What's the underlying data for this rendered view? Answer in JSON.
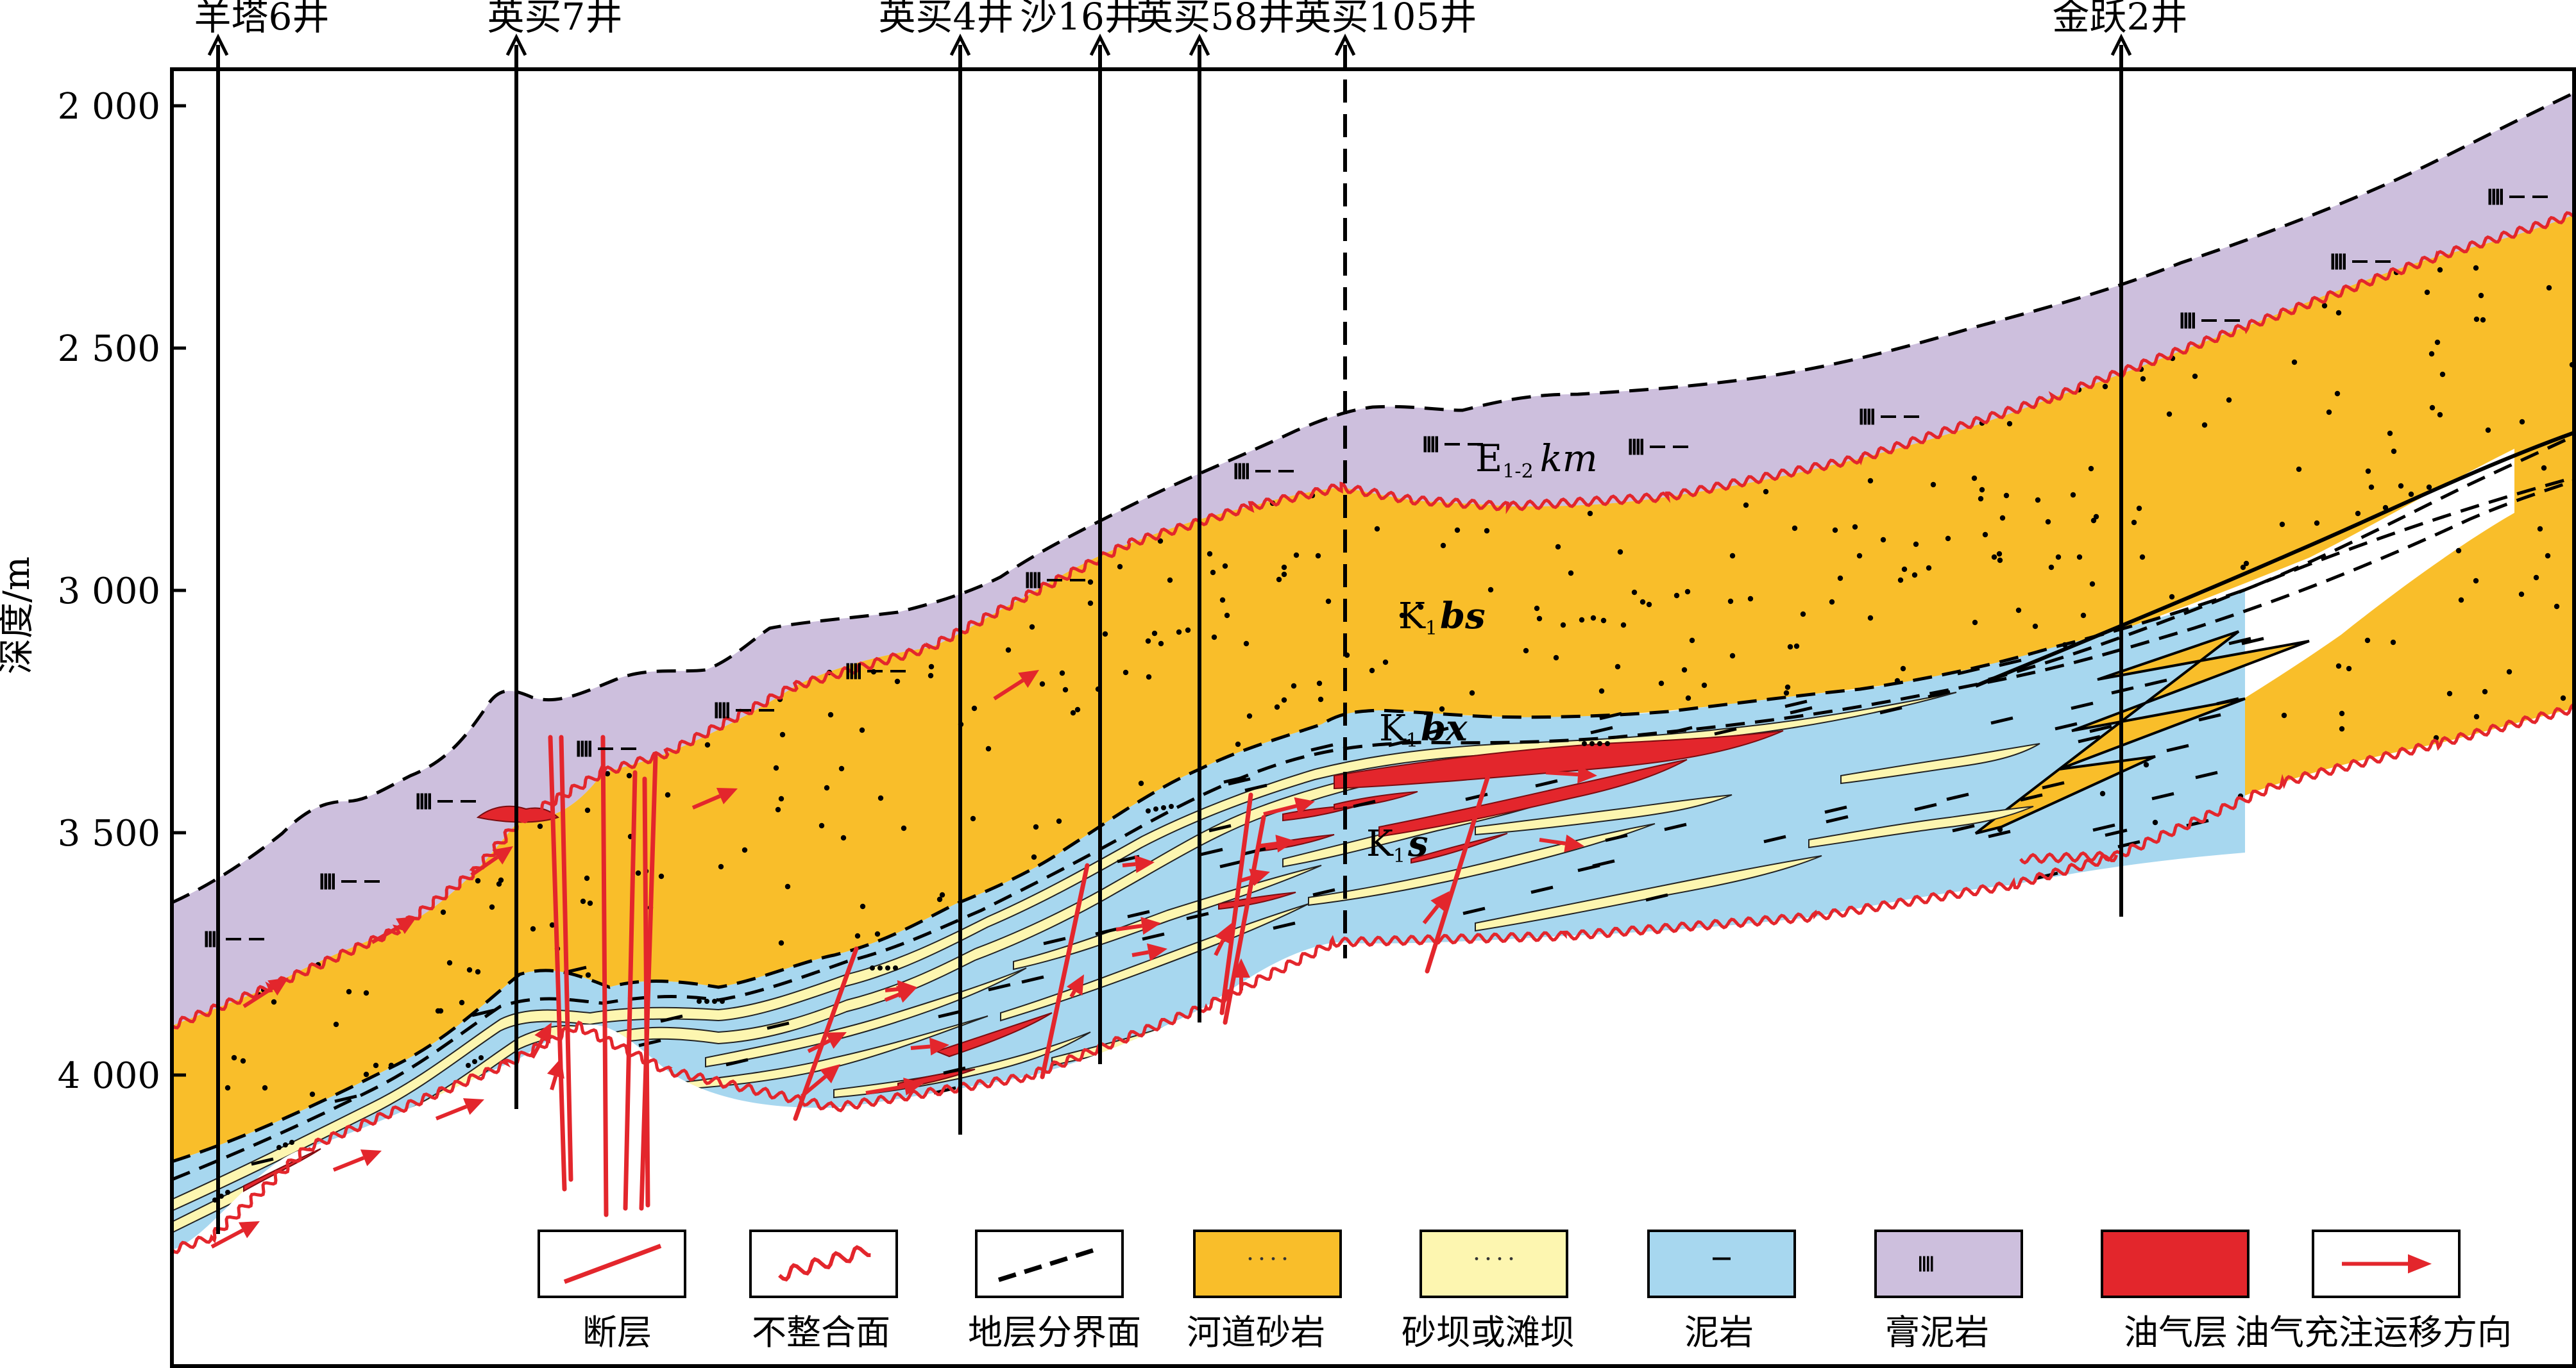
{
  "axis": {
    "ylabel": "深度/m",
    "ticks": [
      {
        "depth": 2000,
        "label": "2 000"
      },
      {
        "depth": 2500,
        "label": "2 500"
      },
      {
        "depth": 3000,
        "label": "3 000"
      },
      {
        "depth": 3500,
        "label": "3 500"
      },
      {
        "depth": 4000,
        "label": "4 000"
      }
    ]
  },
  "wells": [
    {
      "name": "羊塔6井",
      "dashed": false
    },
    {
      "name": "英买7井",
      "dashed": false
    },
    {
      "name": "英买4井",
      "dashed": false
    },
    {
      "name": "沙16井",
      "dashed": false
    },
    {
      "name": "英买58井",
      "dashed": false
    },
    {
      "name": "英买105井",
      "dashed": true
    },
    {
      "name": "金跃2井",
      "dashed": false
    }
  ],
  "formations": {
    "km": {
      "main": "E",
      "sub": "1-2",
      "italic": "km"
    },
    "bs": {
      "main": "K",
      "sub": "1",
      "italic": "bs"
    },
    "bx": {
      "main": "K",
      "sub": "1",
      "italic": "bx"
    },
    "s": {
      "main": "K",
      "sub": "1",
      "italic": "s"
    }
  },
  "legend": [
    {
      "key": "fault",
      "label": "断层"
    },
    {
      "key": "unconformity",
      "label": "不整合面"
    },
    {
      "key": "boundary",
      "label": "地层分界面"
    },
    {
      "key": "channel-sand",
      "label": "河道砂岩"
    },
    {
      "key": "bar-sand",
      "label": "砂坝或滩坝"
    },
    {
      "key": "mudstone",
      "label": "泥岩"
    },
    {
      "key": "gypsum-mud",
      "label": "膏泥岩"
    },
    {
      "key": "oil-gas",
      "label": "油气层"
    },
    {
      "key": "migration",
      "label": "油气充注运移方向"
    }
  ],
  "colors": {
    "gypsum": "#cdbfdd",
    "channel_sand": "#f9be2a",
    "mudstone": "#a7d7ef",
    "bar_sand": "#fdf6b0",
    "oil": "#e3262c",
    "fault": "#e3262c",
    "line": "#000000"
  }
}
